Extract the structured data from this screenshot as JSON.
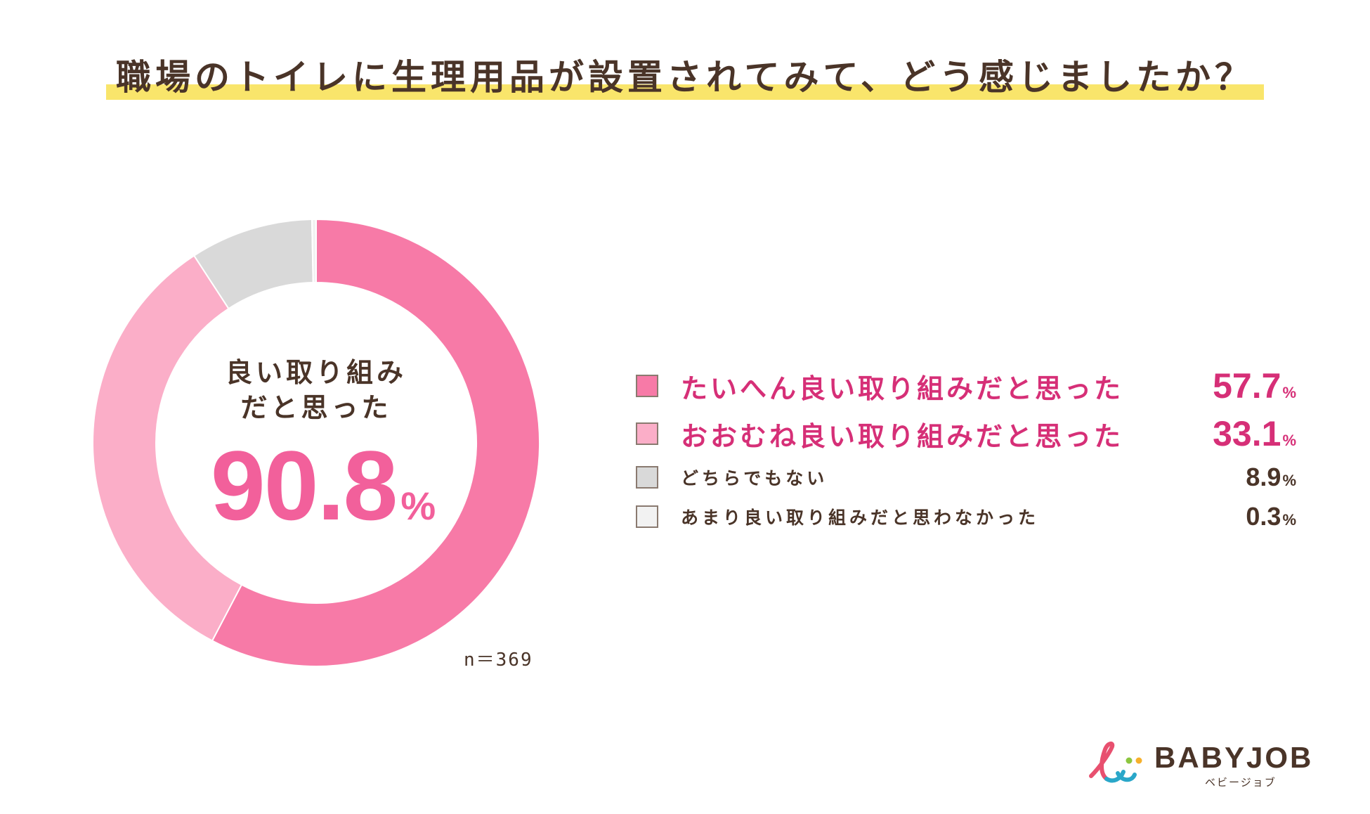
{
  "title": "職場のトイレに生理用品が設置されてみて、どう感じましたか？",
  "center": {
    "label_line1": "良い取り組み",
    "label_line2": "だと思った",
    "value": "90.8",
    "unit": "%"
  },
  "sample_size": "n＝369",
  "legend": [
    {
      "label": "たいへん良い取り組みだと思った",
      "value": "57.7",
      "unit": "%"
    },
    {
      "label": "おおむね良い取り組みだと思った",
      "value": "33.1",
      "unit": "%"
    },
    {
      "label": "どちらでもない",
      "value": "8.9",
      "unit": "%"
    },
    {
      "label": "あまり良い取り組みだと思わなかった",
      "value": "0.3",
      "unit": "%"
    }
  ],
  "colors": {
    "very_good": "#f77aa7",
    "mostly_good": "#fbaec8",
    "neutral": "#d9d9d9",
    "not_good": "#f2f2f2",
    "accent_text": "#d62f77",
    "title_marker": "#f9e56b"
  },
  "logo": {
    "name": "BABYJOB",
    "kana": "ベビージョブ"
  },
  "chart_data": {
    "type": "pie",
    "title": "職場のトイレに生理用品が設置されてみて、どう感じましたか？",
    "categories": [
      "たいへん良い取り組みだと思った",
      "おおむね良い取り組みだと思った",
      "どちらでもない",
      "あまり良い取り組みだと思わなかった"
    ],
    "values": [
      57.7,
      33.1,
      8.9,
      0.3
    ],
    "donut": true,
    "legend_position": "right"
  }
}
